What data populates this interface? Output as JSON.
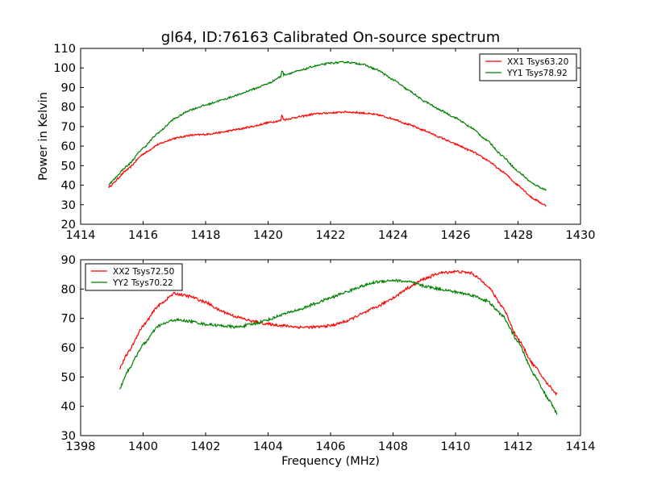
{
  "figure": {
    "title": "gl64, ID:76163 Calibrated On-source spectrum",
    "ylabel": "Power in Kelvin",
    "xlabel": "Frequency (MHz)"
  },
  "chart_data": [
    {
      "type": "line",
      "title": "gl64, ID:76163 Calibrated On-source spectrum",
      "xlabel": "",
      "ylabel": "Power in Kelvin",
      "xlim": [
        1414,
        1430
      ],
      "ylim": [
        20,
        110
      ],
      "xticks": [
        1414,
        1416,
        1418,
        1420,
        1422,
        1424,
        1426,
        1428,
        1430
      ],
      "yticks": [
        20,
        30,
        40,
        50,
        60,
        70,
        80,
        90,
        100,
        110
      ],
      "grid": false,
      "legend_position": "top-right",
      "series": [
        {
          "name": "XX1 Tsys63.20",
          "color": "#ff0000",
          "x": [
            1414.9,
            1415.5,
            1416.0,
            1416.5,
            1417.0,
            1417.5,
            1418.0,
            1418.5,
            1419.0,
            1419.5,
            1420.0,
            1420.4,
            1420.45,
            1420.5,
            1421.0,
            1421.5,
            1422.0,
            1422.5,
            1423.0,
            1423.5,
            1424.0,
            1424.5,
            1425.0,
            1425.5,
            1426.0,
            1426.5,
            1427.0,
            1427.5,
            1428.0,
            1428.5,
            1428.9
          ],
          "y": [
            39,
            48,
            56,
            61,
            64,
            65.5,
            66,
            67,
            68.5,
            70,
            72,
            73,
            76,
            73.5,
            75,
            76.5,
            77,
            77.5,
            77,
            76,
            74,
            71,
            68,
            64.5,
            61,
            57.5,
            53,
            47,
            40,
            33,
            29.5
          ]
        },
        {
          "name": "YY1 Tsys78.92",
          "color": "#008000",
          "x": [
            1414.9,
            1415.5,
            1416.0,
            1416.5,
            1417.0,
            1417.5,
            1418.0,
            1418.5,
            1419.0,
            1419.5,
            1420.0,
            1420.4,
            1420.45,
            1420.5,
            1421.0,
            1421.5,
            1422.0,
            1422.5,
            1423.0,
            1423.5,
            1424.0,
            1424.5,
            1425.0,
            1425.5,
            1426.0,
            1426.5,
            1427.0,
            1427.5,
            1428.0,
            1428.5,
            1428.9
          ],
          "y": [
            40.5,
            50,
            59,
            67,
            74,
            78.5,
            81,
            83.5,
            86,
            89,
            92,
            95.5,
            99,
            96.5,
            98.5,
            101,
            102.5,
            103,
            102,
            99,
            94,
            88.5,
            83,
            78.5,
            74.5,
            69.5,
            63,
            55,
            47,
            40.5,
            37.5
          ]
        }
      ]
    },
    {
      "type": "line",
      "title": "",
      "xlabel": "Frequency (MHz)",
      "ylabel": "",
      "xlim": [
        1398,
        1414
      ],
      "ylim": [
        30,
        90
      ],
      "xticks": [
        1398,
        1400,
        1402,
        1404,
        1406,
        1408,
        1410,
        1412,
        1414
      ],
      "yticks": [
        30,
        40,
        50,
        60,
        70,
        80,
        90
      ],
      "grid": false,
      "legend_position": "top-left",
      "series": [
        {
          "name": "XX2 Tsys72.50",
          "color": "#ff0000",
          "x": [
            1399.25,
            1399.5,
            1400.0,
            1400.5,
            1401.0,
            1401.5,
            1402.0,
            1402.5,
            1403.0,
            1403.5,
            1404.0,
            1404.5,
            1405.0,
            1405.5,
            1406.0,
            1406.5,
            1407.0,
            1407.5,
            1408.0,
            1408.5,
            1409.0,
            1409.5,
            1410.0,
            1410.5,
            1411.0,
            1411.5,
            1412.0,
            1412.5,
            1413.0,
            1413.25
          ],
          "y": [
            53,
            58,
            67.5,
            74.5,
            78.5,
            77.5,
            75.5,
            72.5,
            70.5,
            69,
            68,
            67.5,
            67,
            67,
            67.5,
            69,
            71.5,
            74,
            77,
            80.5,
            83.5,
            85.5,
            86,
            85.5,
            81.5,
            74,
            63,
            54,
            47,
            44
          ]
        },
        {
          "name": "YY2 Tsys70.22",
          "color": "#008000",
          "x": [
            1399.25,
            1399.5,
            1400.0,
            1400.5,
            1401.0,
            1401.5,
            1402.0,
            1402.5,
            1403.0,
            1403.5,
            1404.0,
            1404.5,
            1405.0,
            1405.5,
            1406.0,
            1406.5,
            1407.0,
            1407.5,
            1408.0,
            1408.5,
            1409.0,
            1409.5,
            1410.0,
            1410.5,
            1411.0,
            1411.5,
            1412.0,
            1412.5,
            1413.0,
            1413.25
          ],
          "y": [
            46,
            52,
            61,
            67.5,
            69.5,
            69,
            68,
            67.5,
            67,
            68,
            69.5,
            71.5,
            73,
            75,
            77,
            79,
            81,
            82.5,
            83,
            82.5,
            81,
            80,
            79,
            78,
            76,
            71,
            62,
            51,
            42,
            37.5
          ]
        }
      ]
    }
  ]
}
